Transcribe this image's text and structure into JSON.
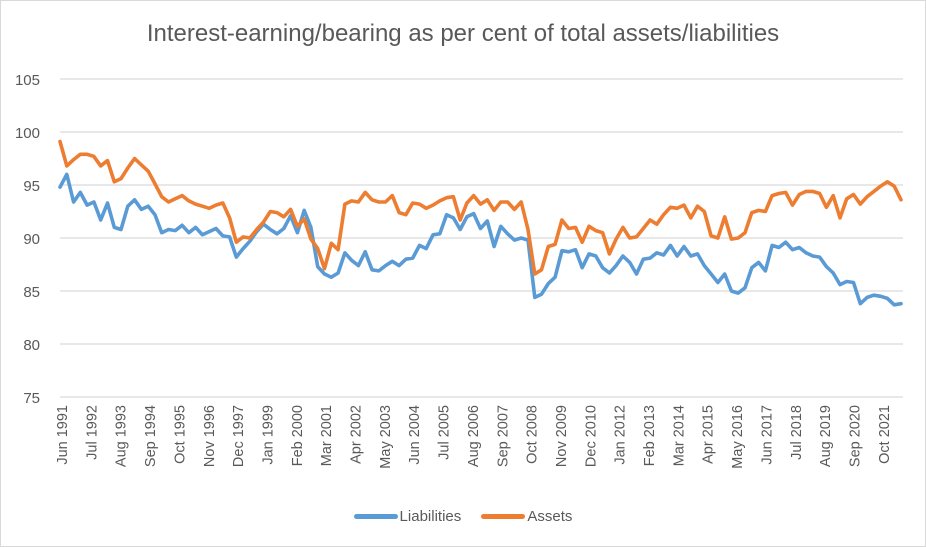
{
  "chart_data": {
    "type": "line",
    "title": "Interest-earning/bearing as per cent of total assets/liabilities",
    "xlabel": "",
    "ylabel": "",
    "ylim": [
      75,
      105
    ],
    "yticks": [
      75,
      80,
      85,
      90,
      95,
      100,
      105
    ],
    "grid": true,
    "legend": "bottom",
    "x_tick_labels": [
      "Jun 1991",
      "Jul 1992",
      "Aug 1993",
      "Sep 1994",
      "Oct 1995",
      "Nov 1996",
      "Dec 1997",
      "Jan 1999",
      "Feb 2000",
      "Mar 2001",
      "Apr 2002",
      "May 2003",
      "Jun 2004",
      "Jul 2005",
      "Aug 2006",
      "Sep 2007",
      "Oct 2008",
      "Nov 2009",
      "Dec 2010",
      "Jan 2012",
      "Feb 2013",
      "Mar 2014",
      "Apr 2015",
      "May 2016",
      "Jun 2017",
      "Jul 2018",
      "Aug 2019",
      "Sep 2020",
      "Oct 2021"
    ],
    "series": [
      {
        "name": "Liabilities",
        "color": "#5b9bd5",
        "values": [
          94.8,
          96.0,
          93.4,
          94.3,
          93.1,
          93.4,
          91.7,
          93.3,
          91.0,
          90.8,
          93.0,
          93.6,
          92.7,
          93.0,
          92.2,
          90.5,
          90.8,
          90.7,
          91.2,
          90.5,
          91.0,
          90.3,
          90.6,
          90.9,
          90.2,
          90.1,
          88.2,
          89.0,
          89.7,
          90.6,
          91.3,
          90.8,
          90.4,
          90.9,
          92.1,
          90.5,
          92.6,
          91.0,
          87.3,
          86.6,
          86.3,
          86.7,
          88.6,
          87.9,
          87.4,
          88.7,
          87.0,
          86.9,
          87.4,
          87.8,
          87.4,
          88.0,
          88.1,
          89.3,
          89.0,
          90.3,
          90.4,
          92.2,
          91.9,
          90.8,
          92.0,
          92.3,
          90.9,
          91.6,
          89.2,
          91.1,
          90.4,
          89.8,
          90.0,
          89.8,
          84.4,
          84.7,
          85.7,
          86.3,
          88.8,
          88.7,
          88.9,
          87.2,
          88.5,
          88.3,
          87.2,
          86.7,
          87.4,
          88.3,
          87.7,
          86.6,
          88.0,
          88.1,
          88.6,
          88.4,
          89.3,
          88.3,
          89.2,
          88.3,
          88.5,
          87.4,
          86.6,
          85.8,
          86.6,
          85.0,
          84.8,
          85.3,
          87.2,
          87.7,
          86.9,
          89.3,
          89.1,
          89.6,
          88.9,
          89.1,
          88.6,
          88.3,
          88.2,
          87.3,
          86.7,
          85.6,
          85.9,
          85.8,
          83.8,
          84.4,
          84.6,
          84.5,
          84.3,
          83.7,
          83.8
        ]
      },
      {
        "name": "Assets",
        "color": "#ed7d31",
        "values": [
          99.1,
          96.8,
          97.4,
          97.9,
          97.9,
          97.7,
          96.8,
          97.3,
          95.3,
          95.6,
          96.6,
          97.5,
          96.9,
          96.3,
          95.1,
          93.9,
          93.4,
          93.7,
          94.0,
          93.5,
          93.2,
          93.0,
          92.8,
          93.1,
          93.3,
          91.9,
          89.6,
          90.1,
          90.0,
          90.8,
          91.5,
          92.5,
          92.4,
          92.0,
          92.7,
          91.1,
          91.8,
          89.9,
          89.0,
          87.1,
          89.5,
          88.9,
          93.2,
          93.5,
          93.4,
          94.3,
          93.6,
          93.4,
          93.4,
          94.0,
          92.4,
          92.2,
          93.3,
          93.2,
          92.8,
          93.1,
          93.5,
          93.8,
          93.9,
          91.7,
          93.3,
          94.0,
          93.2,
          93.6,
          92.6,
          93.4,
          93.4,
          92.7,
          93.4,
          90.8,
          86.6,
          87.0,
          89.2,
          89.4,
          91.7,
          90.9,
          91.0,
          89.6,
          91.1,
          90.7,
          90.5,
          88.5,
          89.9,
          91.0,
          90.0,
          90.1,
          90.9,
          91.7,
          91.3,
          92.2,
          92.9,
          92.8,
          93.1,
          91.9,
          93.0,
          92.5,
          90.2,
          90.0,
          92.0,
          89.9,
          90.0,
          90.5,
          92.4,
          92.6,
          92.5,
          94.0,
          94.2,
          94.3,
          93.1,
          94.1,
          94.4,
          94.4,
          94.2,
          92.9,
          94.0,
          91.9,
          93.7,
          94.1,
          93.2,
          93.9,
          94.4,
          94.9,
          95.3,
          94.9,
          93.6
        ]
      }
    ]
  }
}
